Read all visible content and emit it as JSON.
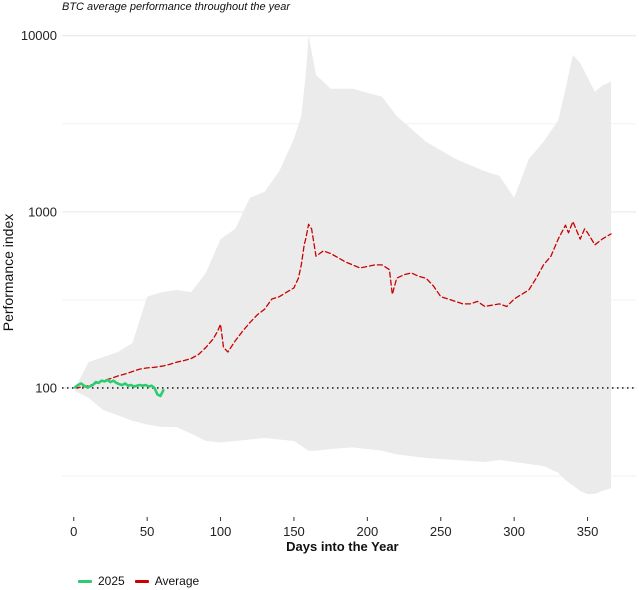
{
  "chart_data": {
    "type": "line",
    "title": "BTC average performance throughout the year",
    "xlabel": "Days into the Year",
    "ylabel": "Performance index",
    "y_scale": "log",
    "xlim": [
      -8,
      383
    ],
    "ylim": [
      19,
      14000
    ],
    "x_ticks": [
      0,
      50,
      100,
      150,
      200,
      250,
      300,
      350
    ],
    "x_tick_labels": [
      "0",
      "50",
      "100",
      "150",
      "200",
      "250",
      "300",
      "350"
    ],
    "y_ticks": [
      100,
      1000,
      10000
    ],
    "y_tick_labels": [
      "100",
      "1000",
      "10000"
    ],
    "reference_line": {
      "y": 100,
      "style": "dotted",
      "color": "#000000"
    },
    "grid": true,
    "legend": {
      "position": "bottom-left"
    },
    "range_band": {
      "color": "#ebebeb",
      "x": [
        1,
        10,
        20,
        30,
        40,
        50,
        60,
        70,
        80,
        90,
        100,
        110,
        120,
        130,
        140,
        150,
        155,
        158,
        160,
        165,
        175,
        190,
        210,
        220,
        240,
        260,
        280,
        290,
        300,
        310,
        320,
        330,
        335,
        340,
        345,
        350,
        355,
        360,
        366
      ],
      "upper": [
        100,
        140,
        150,
        160,
        180,
        330,
        350,
        360,
        350,
        450,
        700,
        800,
        1200,
        1300,
        1700,
        2600,
        3500,
        6000,
        10000,
        6000,
        5000,
        5000,
        4500,
        3500,
        2500,
        2000,
        1700,
        1600,
        1200,
        2000,
        2500,
        3300,
        5000,
        7800,
        7000,
        5800,
        4800,
        5200,
        5500
      ],
      "lower": [
        96,
        88,
        75,
        70,
        65,
        62,
        60,
        60,
        55,
        50,
        49,
        50,
        51,
        52,
        51,
        50,
        47,
        45,
        44,
        44,
        45,
        46,
        44,
        42,
        40,
        39,
        38,
        39,
        38,
        37,
        36,
        33,
        30,
        28,
        26,
        25,
        25,
        26,
        27
      ]
    },
    "series": [
      {
        "name": "2025",
        "color": "#2ecc71",
        "style": "solid",
        "x": [
          1,
          3,
          5,
          7,
          9,
          11,
          13,
          15,
          17,
          19,
          21,
          23,
          25,
          27,
          29,
          31,
          33,
          35,
          37,
          39,
          41,
          43,
          45,
          47,
          49,
          51,
          53,
          55,
          57,
          59,
          61
        ],
        "y": [
          101,
          104,
          106,
          103,
          101,
          102,
          104,
          108,
          107,
          110,
          109,
          111,
          108,
          110,
          107,
          105,
          104,
          106,
          103,
          104,
          102,
          103,
          104,
          103,
          104,
          102,
          103,
          100,
          92,
          90,
          97
        ]
      },
      {
        "name": "Average",
        "color": "#cc0000",
        "style": "dashed",
        "x": [
          1,
          5,
          10,
          15,
          20,
          25,
          30,
          35,
          40,
          45,
          50,
          55,
          60,
          65,
          70,
          75,
          80,
          85,
          90,
          95,
          98,
          100,
          102,
          105,
          110,
          115,
          120,
          125,
          130,
          135,
          140,
          145,
          150,
          153,
          155,
          157,
          158,
          160,
          162,
          165,
          170,
          175,
          180,
          185,
          190,
          195,
          200,
          205,
          210,
          215,
          217,
          220,
          225,
          230,
          235,
          240,
          245,
          250,
          255,
          260,
          265,
          270,
          275,
          280,
          285,
          290,
          295,
          300,
          305,
          310,
          315,
          320,
          325,
          330,
          335,
          337,
          340,
          345,
          348,
          350,
          355,
          360,
          366
        ],
        "y": [
          100,
          101,
          103,
          106,
          110,
          113,
          117,
          120,
          124,
          128,
          130,
          131,
          133,
          136,
          140,
          143,
          147,
          155,
          170,
          190,
          210,
          230,
          170,
          160,
          185,
          210,
          235,
          260,
          280,
          320,
          330,
          350,
          370,
          420,
          500,
          650,
          700,
          850,
          800,
          560,
          600,
          580,
          550,
          520,
          500,
          480,
          490,
          500,
          500,
          470,
          340,
          420,
          440,
          450,
          430,
          420,
          380,
          330,
          320,
          310,
          300,
          300,
          310,
          290,
          295,
          300,
          290,
          320,
          340,
          360,
          420,
          500,
          560,
          700,
          840,
          760,
          880,
          700,
          800,
          760,
          650,
          700,
          750
        ]
      }
    ]
  }
}
